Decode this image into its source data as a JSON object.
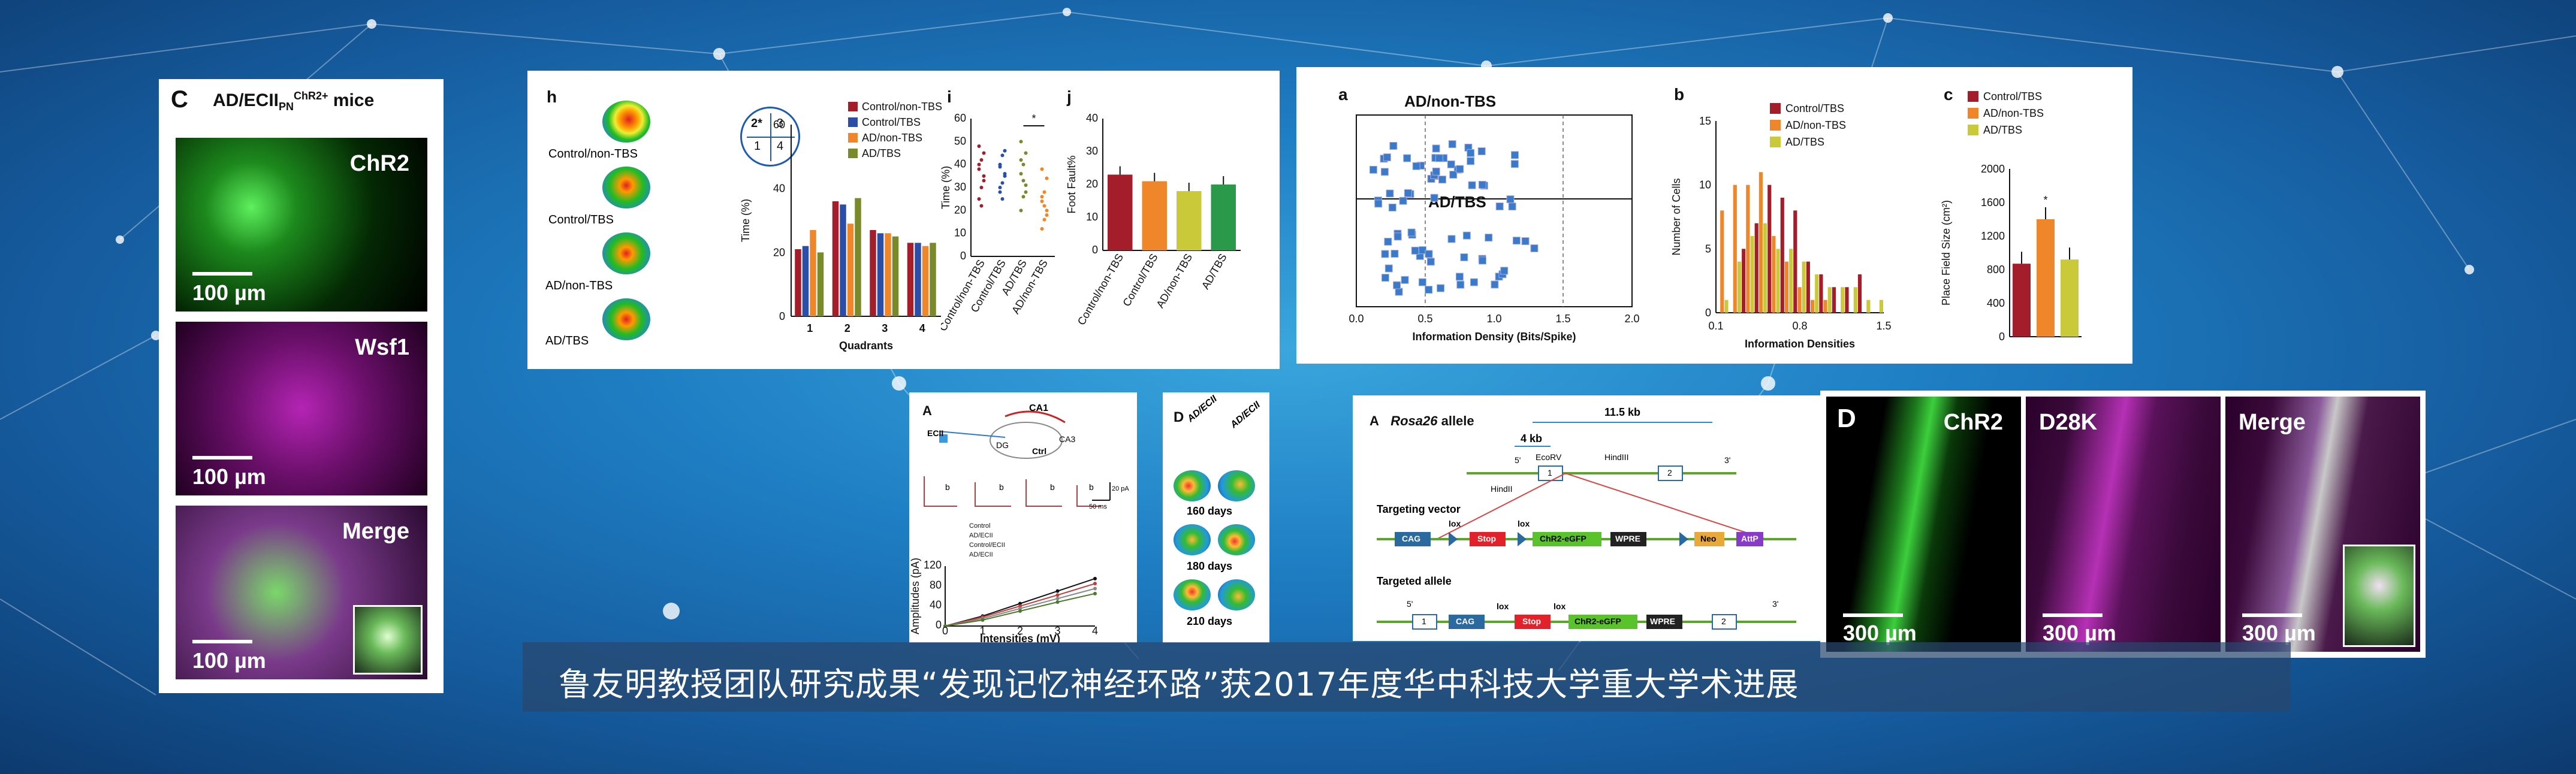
{
  "caption": "鲁友明教授团队研究成果“发现记忆神经环路”获2017年度华中科技大学重大学术进展",
  "panel_c": {
    "letter": "C",
    "title_prefix": "AD/ECII",
    "title_sub": "PN",
    "title_sup": "ChR2+",
    "title_suffix": " mice",
    "images": [
      {
        "label": "ChR2",
        "scale": "100 µm",
        "color": "#3fd43f"
      },
      {
        "label": "Wsf1",
        "scale": "100 µm",
        "color": "#b01fb0"
      },
      {
        "label": "Merge",
        "scale": "100 µm",
        "color": "#7a6aa0"
      }
    ]
  },
  "panel_h": {
    "letter": "h",
    "heatmap_labels": [
      "Control/non-TBS",
      "Control/TBS",
      "AD/non-TBS",
      "AD/TBS"
    ],
    "quadrant_icon": [
      "2*",
      "3",
      "1",
      "4"
    ]
  },
  "panel_i": {
    "letter": "i",
    "star": "*"
  },
  "panel_j": {
    "letter": "j"
  },
  "panel_a2": {
    "letter": "a",
    "top_label": "AD/non-TBS",
    "bottom_label": "AD/TBS"
  },
  "panel_b2": {
    "letter": "b"
  },
  "panel_c2": {
    "letter": "c",
    "star": "*"
  },
  "panel_small_a": {
    "letter": "A",
    "labels": [
      "CA1",
      "ECII",
      "DG",
      "Ctrl",
      "CA3",
      "b",
      "b",
      "b",
      "b"
    ],
    "scale_text": [
      "20 pA",
      "50 ms"
    ],
    "legend": [
      "Control",
      "AD/ECII",
      "Control/ECII",
      "AD/ECII"
    ]
  },
  "panel_small_d": {
    "letter": "D",
    "col_labels": [
      "AD/ECII",
      "AD/ECII"
    ],
    "day_labels": [
      "160 days",
      "180 days",
      "210 days"
    ]
  },
  "panel_rosa": {
    "letter": "A",
    "title_italic": "Rosa26",
    "title_rest": " allele",
    "kb11": "11.5 kb",
    "kb4": "4 kb",
    "site_labels": [
      "EcoRV",
      "HindIII",
      "HindII",
      "5'",
      "3'"
    ],
    "boxes": [
      "1",
      "2"
    ],
    "targeting_vector": "Targeting vector",
    "targeted_allele": "Targeted allele",
    "tv_elements": [
      "CAG",
      "lox",
      "Stop",
      "lox",
      "ChR2-eGFP",
      "WPRE",
      "Neo",
      "AttP"
    ],
    "ta_elements": [
      "5'",
      "1",
      "CAG",
      "lox",
      "Stop",
      "lox",
      "ChR2-eGFP",
      "WPRE",
      "2",
      "3'"
    ]
  },
  "panel_d_micro": {
    "letter": "D",
    "images": [
      {
        "label": "ChR2",
        "scale": "300 µm"
      },
      {
        "label": "D28K",
        "scale": "300 µm"
      },
      {
        "label": "Merge",
        "scale": "300 µm"
      }
    ]
  },
  "chart_data": [
    {
      "type": "bar",
      "id": "quadrant-time",
      "categories": [
        "1",
        "2",
        "3",
        "4"
      ],
      "series": [
        {
          "name": "Control/non-TBS",
          "color": "#a31d2b",
          "values": [
            21,
            36,
            27,
            23
          ]
        },
        {
          "name": "Control/TBS",
          "color": "#2b4fa8",
          "values": [
            22,
            35,
            26,
            23
          ]
        },
        {
          "name": "AD/non-TBS",
          "color": "#f0862a",
          "values": [
            27,
            29,
            26,
            22
          ]
        },
        {
          "name": "AD/TBS",
          "color": "#7a8a2a",
          "values": [
            20,
            37,
            25,
            23
          ]
        }
      ],
      "xlabel": "Quadrants",
      "ylabel": "Time (%)",
      "ylim": [
        0,
        60
      ],
      "yticks": [
        "0",
        "20",
        "40",
        "60"
      ]
    },
    {
      "type": "scatter",
      "id": "time-dots",
      "categories": [
        "Control/non-TBS",
        "Control/TBS",
        "AD/TBS",
        "AD/non-TBS"
      ],
      "ylabel": "Time (%)",
      "ylim": [
        0,
        60
      ],
      "yticks": [
        "0",
        "10",
        "20",
        "30",
        "40",
        "50",
        "60"
      ],
      "series": [
        {
          "color": "#a31d2b",
          "values": [
            25,
            30,
            35,
            40,
            42,
            45,
            48,
            22,
            33,
            38
          ]
        },
        {
          "color": "#2b4fa8",
          "values": [
            28,
            32,
            36,
            40,
            44,
            46,
            30,
            25,
            35,
            39
          ]
        },
        {
          "color": "#7a8a2a",
          "values": [
            20,
            26,
            31,
            36,
            40,
            45,
            50,
            33,
            28,
            42
          ]
        },
        {
          "color": "#f0862a",
          "values": [
            12,
            16,
            20,
            24,
            28,
            34,
            38,
            22,
            18,
            26
          ]
        }
      ]
    },
    {
      "type": "bar",
      "id": "foot-fault",
      "categories": [
        "Control/non-TBS",
        "Control/TBS",
        "AD/non-TBS",
        "AD/TBS"
      ],
      "values": [
        23,
        21,
        18,
        20
      ],
      "colors": [
        "#a31d2b",
        "#f0862a",
        "#c9c93a",
        "#2a9a4a"
      ],
      "ylabel": "Foot Fault%",
      "ylim": [
        0,
        40
      ],
      "yticks": [
        "0",
        "10",
        "20",
        "30",
        "40"
      ]
    },
    {
      "type": "bar",
      "id": "info-density-hist",
      "categories": [
        "0.2",
        "0.3",
        "0.4",
        "0.5",
        "0.6",
        "0.7",
        "0.8",
        "0.9",
        "1.0",
        "1.1",
        "1.2",
        "1.3",
        "1.4"
      ],
      "series": [
        {
          "name": "Control/TBS",
          "color": "#a31d2b",
          "values": [
            0,
            0,
            5,
            7,
            10,
            9,
            8,
            4,
            3,
            2,
            2,
            3,
            0
          ]
        },
        {
          "name": "AD/non-TBS",
          "color": "#f0862a",
          "values": [
            8,
            10,
            10,
            11,
            6,
            4,
            2,
            1,
            1,
            0,
            0,
            0,
            0
          ]
        },
        {
          "name": "AD/TBS",
          "color": "#c9c93a",
          "values": [
            1,
            4,
            6,
            7,
            5,
            5,
            4,
            3,
            2,
            2,
            2,
            1,
            1
          ]
        }
      ],
      "xlabel": "Information Densities",
      "ylabel": "Number of Cells",
      "xticks": [
        "0.1",
        "0.8",
        "1.5"
      ],
      "yticks": [
        "0",
        "5",
        "10",
        "15"
      ],
      "ylim": [
        0,
        15
      ]
    },
    {
      "type": "bar",
      "id": "place-field-size",
      "categories": [
        "Control/TBS",
        "AD/non-TBS",
        "AD/TBS"
      ],
      "values": [
        870,
        1400,
        920
      ],
      "colors": [
        "#a31d2b",
        "#f0862a",
        "#c9c93a"
      ],
      "ylabel": "Place Field Size (cm²)",
      "ylim": [
        0,
        2000
      ],
      "yticks": [
        "0",
        "400",
        "800",
        "1200",
        "1600",
        "2000"
      ]
    },
    {
      "type": "line",
      "id": "amplitudes",
      "x": [
        0,
        1,
        2,
        3,
        4
      ],
      "series": [
        {
          "color": "#111111",
          "values": [
            0,
            20,
            45,
            70,
            95
          ]
        },
        {
          "color": "#c23b3b",
          "values": [
            0,
            18,
            40,
            62,
            85
          ]
        },
        {
          "color": "#888888",
          "values": [
            0,
            15,
            35,
            55,
            75
          ]
        },
        {
          "color": "#4a7a2a",
          "values": [
            0,
            12,
            30,
            48,
            65
          ]
        }
      ],
      "xlabel": "Intensities (mV)",
      "ylabel": "Amplitudes (pA)",
      "ylim": [
        0,
        120
      ],
      "yticks": [
        "0",
        "20",
        "40",
        "60",
        "80",
        "100",
        "120"
      ],
      "xticks": [
        "0",
        "1",
        "2",
        "3",
        "4"
      ]
    },
    {
      "type": "scatter",
      "id": "info-density-scatter",
      "xlabel": "Information Density (Bits/Spike)",
      "xticks": [
        "0.0",
        "0.5",
        "1.0",
        "1.5",
        "2.0"
      ],
      "xlim": [
        0,
        2
      ]
    }
  ]
}
